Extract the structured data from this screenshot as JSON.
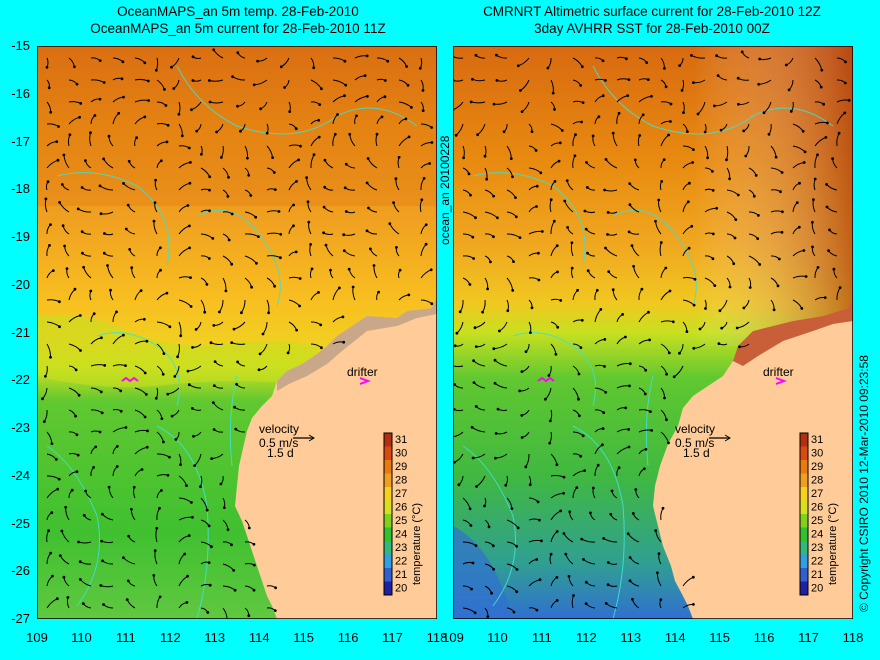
{
  "titles": {
    "left_line1": "OceanMAPS_an 5m temp. 28-Feb-2010",
    "left_line2": "OceanMAPS_an 5m current for 28-Feb-2010 11Z",
    "right_line1": "CMRNRT Altimetric surface current for 28-Feb-2010 12Z",
    "right_line2": "3day AVHRR SST for 28-Feb-2010 00Z"
  },
  "y_ticks": [
    "-15",
    "-16",
    "-17",
    "-18",
    "-19",
    "-20",
    "-21",
    "-22",
    "-23",
    "-24",
    "-25",
    "-26",
    "-27"
  ],
  "x_ticks_left": [
    "109",
    "110",
    "111",
    "112",
    "113",
    "114",
    "115",
    "116",
    "117",
    "118"
  ],
  "x_ticks_right": [
    "109",
    "110",
    "111",
    "112",
    "113",
    "114",
    "115",
    "116",
    "117",
    "118"
  ],
  "middle_label": "ocean_an 20100228",
  "copyright": "© Copyright CSIRO 2010   12-Mar-2010 09:23:58",
  "drifter_label": "drifter",
  "velocity": {
    "label": "velocity",
    "speed": "0.5 m/s",
    "time": "1.5 d"
  },
  "colorbar": {
    "label": "temperature (°C)",
    "ticks": [
      "31",
      "30",
      "29",
      "28",
      "27",
      "26",
      "25",
      "24",
      "23",
      "22",
      "21",
      "20"
    ],
    "colors": [
      "#b03010",
      "#d84a10",
      "#e87a10",
      "#f0a020",
      "#f8d020",
      "#d8e020",
      "#80d020",
      "#30c030",
      "#30b880",
      "#30a0e0",
      "#3060d0",
      "#2020a0"
    ]
  },
  "colors": {
    "background": "#00ffff",
    "land": "#ffcc99",
    "coast_alt": "#c8a888",
    "contour": "#40e0d0",
    "arrow": "#000000",
    "drifter": "#ff00ff"
  }
}
